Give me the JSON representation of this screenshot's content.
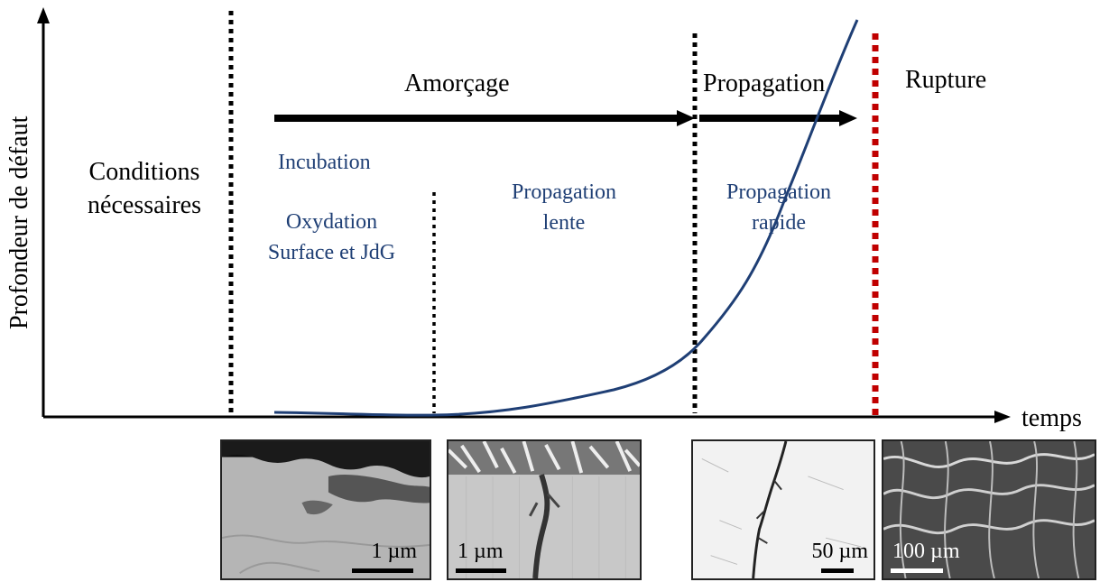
{
  "axes": {
    "y_label": "Profondeur de défaut",
    "x_label": "temps"
  },
  "phases": {
    "conditions_line1": "Conditions",
    "conditions_line2": "nécessaires",
    "amorcage": "Amorçage",
    "propagation": "Propagation",
    "rupture": "Rupture"
  },
  "stages": {
    "incubation": "Incubation",
    "oxydation_line1": "Oxydation",
    "oxydation_line2": "Surface et JdG",
    "prop_lente_line1": "Propagation",
    "prop_lente_line2": "lente",
    "prop_rapide_line1": "Propagation",
    "prop_rapide_line2": "rapide"
  },
  "micrographs": [
    {
      "scale": "1 µm"
    },
    {
      "scale": "1 µm"
    },
    {
      "scale": "50 µm"
    },
    {
      "scale": "100 µm"
    }
  ],
  "colors": {
    "curve": "#1f3f75",
    "text_blue": "#1f3f75",
    "rupture_line": "#c00000",
    "black": "#000000"
  }
}
